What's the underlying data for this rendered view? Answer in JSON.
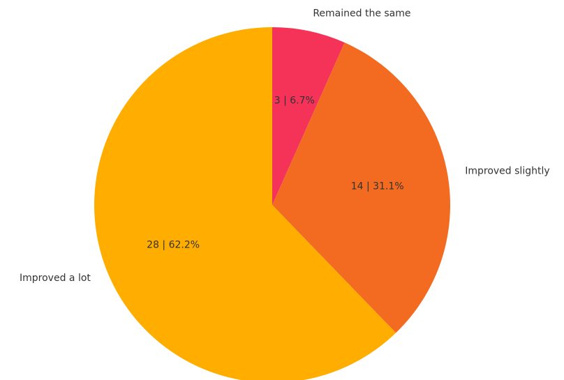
{
  "chart_data": {
    "type": "pie",
    "slices": [
      {
        "label": "Remained the same",
        "value": 3,
        "percent": 6.7,
        "color": "#f53358",
        "inner_label": "3 | 6.7%"
      },
      {
        "label": "Improved slightly",
        "value": 14,
        "percent": 31.1,
        "color": "#f26b21",
        "inner_label": "14 | 31.1%"
      },
      {
        "label": "Improved a lot",
        "value": 28,
        "percent": 62.2,
        "color": "#ffae00",
        "inner_label": "28 | 62.2%"
      }
    ],
    "start_angle_deg": 90,
    "direction": "clockwise"
  }
}
